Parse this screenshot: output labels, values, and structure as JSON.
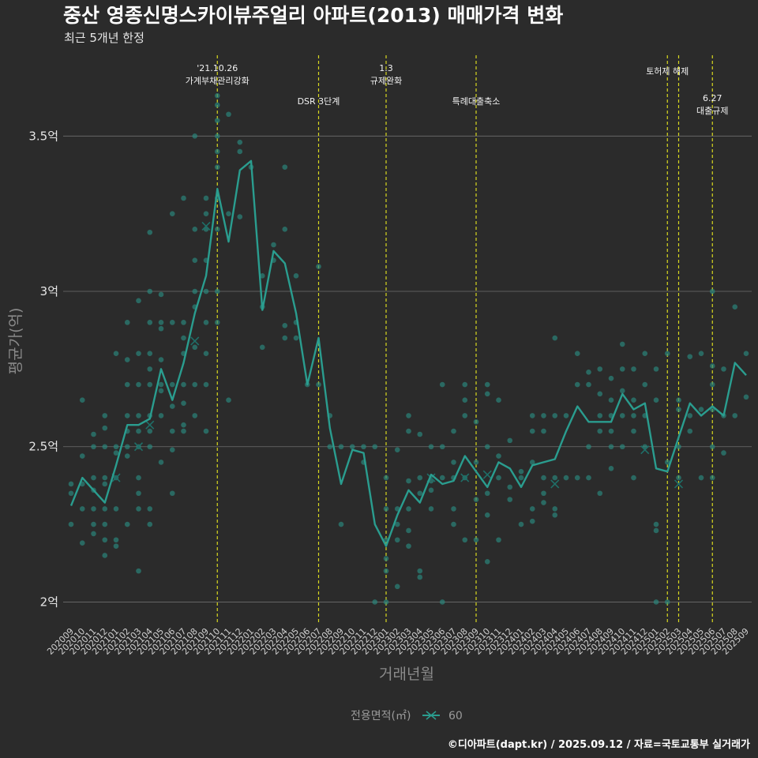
{
  "chart_data": {
    "type": "line",
    "title": "중산 영종신명스카이뷰주얼리 아파트(2013) 매매가격 변화",
    "subtitle": "최근 5개년 한정",
    "xlabel": "거래년월",
    "ylabel": "평균가(억)",
    "caption": "©디아파트(dapt.kr) / 2025.09.12 / 자료=국토교통부 실거래가",
    "legend": {
      "title": "전용면적(㎡)",
      "label": "60",
      "position": "bottom"
    },
    "colors": {
      "background": "#2b2b2b",
      "grid": "#6e6e6e",
      "series": "#2a9d8f",
      "points": "#2a8a80",
      "events": "#d8d81f"
    },
    "ylim": [
      1.93,
      3.76
    ],
    "yticks": [
      {
        "value": 2.0,
        "label": "2억"
      },
      {
        "value": 2.5,
        "label": "2.5억"
      },
      {
        "value": 3.0,
        "label": "3억"
      },
      {
        "value": 3.5,
        "label": "3.5억"
      }
    ],
    "categories": [
      "202009",
      "202010",
      "202011",
      "202012",
      "202101",
      "202102",
      "202103",
      "202104",
      "202105",
      "202106",
      "202107",
      "202108",
      "202109",
      "202110",
      "202111",
      "202112",
      "202201",
      "202202",
      "202203",
      "202204",
      "202205",
      "202206",
      "202207",
      "202208",
      "202209",
      "202210",
      "202211",
      "202212",
      "202301",
      "202302",
      "202303",
      "202304",
      "202305",
      "202306",
      "202307",
      "202308",
      "202309",
      "202310",
      "202311",
      "202312",
      "202401",
      "202402",
      "202403",
      "202404",
      "202405",
      "202406",
      "202407",
      "202408",
      "202409",
      "202410",
      "202411",
      "202412",
      "202501",
      "202502",
      "202503",
      "202504",
      "202505",
      "202506",
      "202507",
      "202508",
      "202509"
    ],
    "series": [
      {
        "name": "60",
        "values": [
          2.31,
          2.4,
          2.36,
          2.32,
          2.44,
          2.57,
          2.57,
          2.59,
          2.75,
          2.65,
          2.77,
          2.93,
          3.05,
          3.33,
          3.16,
          3.39,
          3.42,
          2.94,
          3.13,
          3.09,
          2.93,
          2.7,
          2.85,
          2.56,
          2.38,
          2.49,
          2.48,
          2.25,
          2.18,
          2.28,
          2.36,
          2.32,
          2.41,
          2.38,
          2.39,
          2.47,
          2.42,
          2.37,
          2.45,
          2.43,
          2.37,
          2.44,
          2.45,
          2.46,
          2.55,
          2.63,
          2.58,
          2.58,
          2.58,
          2.67,
          2.62,
          2.64,
          2.43,
          2.42,
          2.53,
          2.64,
          2.6,
          2.63,
          2.6,
          2.77,
          2.73
        ]
      }
    ],
    "scatter_points": [
      [
        0,
        2.25
      ],
      [
        0,
        2.35
      ],
      [
        0,
        2.38
      ],
      [
        1,
        2.19
      ],
      [
        1,
        2.3
      ],
      [
        1,
        2.38
      ],
      [
        1,
        2.47
      ],
      [
        1,
        2.65
      ],
      [
        2,
        2.22
      ],
      [
        2,
        2.25
      ],
      [
        2,
        2.3
      ],
      [
        2,
        2.36
      ],
      [
        2,
        2.4
      ],
      [
        2,
        2.5
      ],
      [
        2,
        2.54
      ],
      [
        3,
        2.15
      ],
      [
        3,
        2.2
      ],
      [
        3,
        2.25
      ],
      [
        3,
        2.3
      ],
      [
        3,
        2.38
      ],
      [
        3,
        2.4
      ],
      [
        3,
        2.5
      ],
      [
        3,
        2.56
      ],
      [
        3,
        2.6
      ],
      [
        4,
        2.18
      ],
      [
        4,
        2.2
      ],
      [
        4,
        2.3
      ],
      [
        4,
        2.4
      ],
      [
        4,
        2.48
      ],
      [
        4,
        2.5
      ],
      [
        4,
        2.8
      ],
      [
        5,
        2.25
      ],
      [
        5,
        2.47
      ],
      [
        5,
        2.5
      ],
      [
        5,
        2.55
      ],
      [
        5,
        2.6
      ],
      [
        5,
        2.7
      ],
      [
        5,
        2.78
      ],
      [
        5,
        2.9
      ],
      [
        6,
        2.1
      ],
      [
        6,
        2.3
      ],
      [
        6,
        2.35
      ],
      [
        6,
        2.4
      ],
      [
        6,
        2.5
      ],
      [
        6,
        2.55
      ],
      [
        6,
        2.6
      ],
      [
        6,
        2.7
      ],
      [
        6,
        2.8
      ],
      [
        6,
        2.97
      ],
      [
        7,
        2.25
      ],
      [
        7,
        2.3
      ],
      [
        7,
        2.5
      ],
      [
        7,
        2.55
      ],
      [
        7,
        2.6
      ],
      [
        7,
        2.7
      ],
      [
        7,
        2.75
      ],
      [
        7,
        2.8
      ],
      [
        7,
        2.9
      ],
      [
        7,
        3.0
      ],
      [
        7,
        3.19
      ],
      [
        8,
        2.45
      ],
      [
        8,
        2.6
      ],
      [
        8,
        2.68
      ],
      [
        8,
        2.7
      ],
      [
        8,
        2.78
      ],
      [
        8,
        2.88
      ],
      [
        8,
        2.9
      ],
      [
        8,
        2.99
      ],
      [
        9,
        2.35
      ],
      [
        9,
        2.49
      ],
      [
        9,
        2.55
      ],
      [
        9,
        2.63
      ],
      [
        9,
        2.7
      ],
      [
        9,
        2.9
      ],
      [
        9,
        3.25
      ],
      [
        10,
        2.55
      ],
      [
        10,
        2.57
      ],
      [
        10,
        2.64
      ],
      [
        10,
        2.7
      ],
      [
        10,
        2.8
      ],
      [
        10,
        2.85
      ],
      [
        10,
        2.9
      ],
      [
        10,
        3.3
      ],
      [
        11,
        2.6
      ],
      [
        11,
        2.7
      ],
      [
        11,
        2.82
      ],
      [
        11,
        2.95
      ],
      [
        11,
        3.0
      ],
      [
        11,
        3.1
      ],
      [
        11,
        3.2
      ],
      [
        11,
        3.5
      ],
      [
        12,
        2.55
      ],
      [
        12,
        2.7
      ],
      [
        12,
        2.8
      ],
      [
        12,
        2.9
      ],
      [
        12,
        3.0
      ],
      [
        12,
        3.1
      ],
      [
        12,
        3.2
      ],
      [
        12,
        3.25
      ],
      [
        12,
        3.3
      ],
      [
        13,
        2.9
      ],
      [
        13,
        3.0
      ],
      [
        13,
        3.2
      ],
      [
        13,
        3.3
      ],
      [
        13,
        3.4
      ],
      [
        13,
        3.45
      ],
      [
        13,
        3.5
      ],
      [
        13,
        3.55
      ],
      [
        13,
        3.6
      ],
      [
        13,
        3.63
      ],
      [
        14,
        2.65
      ],
      [
        14,
        3.25
      ],
      [
        14,
        3.57
      ],
      [
        15,
        3.24
      ],
      [
        15,
        3.45
      ],
      [
        15,
        3.48
      ],
      [
        16,
        3.4
      ],
      [
        17,
        2.82
      ],
      [
        17,
        2.95
      ],
      [
        17,
        3.05
      ],
      [
        18,
        3.1
      ],
      [
        18,
        3.15
      ],
      [
        19,
        2.85
      ],
      [
        19,
        2.89
      ],
      [
        19,
        3.2
      ],
      [
        19,
        3.4
      ],
      [
        20,
        2.85
      ],
      [
        20,
        2.9
      ],
      [
        20,
        3.05
      ],
      [
        21,
        2.7
      ],
      [
        22,
        2.7
      ],
      [
        22,
        3.08
      ],
      [
        23,
        2.5
      ],
      [
        23,
        2.6
      ],
      [
        24,
        2.25
      ],
      [
        24,
        2.5
      ],
      [
        25,
        2.5
      ],
      [
        26,
        2.45
      ],
      [
        26,
        2.5
      ],
      [
        27,
        2.0
      ],
      [
        27,
        2.5
      ],
      [
        28,
        2.0
      ],
      [
        28,
        2.1
      ],
      [
        28,
        2.14
      ],
      [
        28,
        2.2
      ],
      [
        28,
        2.3
      ],
      [
        28,
        2.4
      ],
      [
        29,
        2.05
      ],
      [
        29,
        2.2
      ],
      [
        29,
        2.25
      ],
      [
        29,
        2.3
      ],
      [
        29,
        2.49
      ],
      [
        30,
        2.18
      ],
      [
        30,
        2.23
      ],
      [
        30,
        2.3
      ],
      [
        30,
        2.39
      ],
      [
        30,
        2.55
      ],
      [
        30,
        2.6
      ],
      [
        31,
        2.08
      ],
      [
        31,
        2.1
      ],
      [
        31,
        2.35
      ],
      [
        31,
        2.4
      ],
      [
        31,
        2.54
      ],
      [
        32,
        2.3
      ],
      [
        32,
        2.36
      ],
      [
        32,
        2.39
      ],
      [
        32,
        2.5
      ],
      [
        33,
        2.0
      ],
      [
        33,
        2.4
      ],
      [
        33,
        2.5
      ],
      [
        33,
        2.7
      ],
      [
        34,
        2.25
      ],
      [
        34,
        2.3
      ],
      [
        34,
        2.4
      ],
      [
        34,
        2.45
      ],
      [
        34,
        2.55
      ],
      [
        35,
        2.2
      ],
      [
        35,
        2.4
      ],
      [
        35,
        2.6
      ],
      [
        35,
        2.65
      ],
      [
        35,
        2.7
      ],
      [
        36,
        2.2
      ],
      [
        36,
        2.33
      ],
      [
        36,
        2.45
      ],
      [
        36,
        2.58
      ],
      [
        37,
        2.13
      ],
      [
        37,
        2.28
      ],
      [
        37,
        2.35
      ],
      [
        37,
        2.5
      ],
      [
        37,
        2.67
      ],
      [
        37,
        2.7
      ],
      [
        38,
        2.2
      ],
      [
        38,
        2.4
      ],
      [
        38,
        2.47
      ],
      [
        38,
        2.65
      ],
      [
        39,
        2.33
      ],
      [
        39,
        2.37
      ],
      [
        39,
        2.52
      ],
      [
        40,
        2.25
      ],
      [
        40,
        2.4
      ],
      [
        40,
        2.42
      ],
      [
        41,
        2.26
      ],
      [
        41,
        2.3
      ],
      [
        41,
        2.45
      ],
      [
        41,
        2.55
      ],
      [
        41,
        2.6
      ],
      [
        42,
        2.32
      ],
      [
        42,
        2.35
      ],
      [
        42,
        2.4
      ],
      [
        42,
        2.55
      ],
      [
        42,
        2.6
      ],
      [
        43,
        2.28
      ],
      [
        43,
        2.3
      ],
      [
        43,
        2.4
      ],
      [
        43,
        2.6
      ],
      [
        43,
        2.85
      ],
      [
        44,
        2.4
      ],
      [
        44,
        2.6
      ],
      [
        45,
        2.4
      ],
      [
        45,
        2.7
      ],
      [
        45,
        2.8
      ],
      [
        46,
        2.4
      ],
      [
        46,
        2.5
      ],
      [
        46,
        2.7
      ],
      [
        46,
        2.74
      ],
      [
        47,
        2.35
      ],
      [
        47,
        2.55
      ],
      [
        47,
        2.6
      ],
      [
        47,
        2.67
      ],
      [
        47,
        2.75
      ],
      [
        48,
        2.43
      ],
      [
        48,
        2.5
      ],
      [
        48,
        2.55
      ],
      [
        48,
        2.6
      ],
      [
        48,
        2.65
      ],
      [
        48,
        2.72
      ],
      [
        49,
        2.5
      ],
      [
        49,
        2.6
      ],
      [
        49,
        2.68
      ],
      [
        49,
        2.75
      ],
      [
        49,
        2.83
      ],
      [
        50,
        2.4
      ],
      [
        50,
        2.55
      ],
      [
        50,
        2.6
      ],
      [
        50,
        2.65
      ],
      [
        50,
        2.75
      ],
      [
        51,
        2.5
      ],
      [
        51,
        2.6
      ],
      [
        51,
        2.7
      ],
      [
        51,
        2.8
      ],
      [
        52,
        2.0
      ],
      [
        52,
        2.23
      ],
      [
        52,
        2.25
      ],
      [
        52,
        2.65
      ],
      [
        52,
        2.75
      ],
      [
        53,
        2.0
      ],
      [
        53,
        2.45
      ],
      [
        53,
        2.8
      ],
      [
        54,
        2.4
      ],
      [
        54,
        2.5
      ],
      [
        54,
        2.62
      ],
      [
        54,
        2.65
      ],
      [
        55,
        2.55
      ],
      [
        55,
        2.6
      ],
      [
        55,
        2.79
      ],
      [
        56,
        2.4
      ],
      [
        56,
        2.62
      ],
      [
        56,
        2.8
      ],
      [
        57,
        2.4
      ],
      [
        57,
        2.5
      ],
      [
        57,
        2.62
      ],
      [
        57,
        2.7
      ],
      [
        57,
        2.76
      ],
      [
        57,
        3.0
      ],
      [
        58,
        2.48
      ],
      [
        58,
        2.6
      ],
      [
        58,
        2.75
      ],
      [
        59,
        2.6
      ],
      [
        59,
        2.95
      ],
      [
        60,
        2.66
      ],
      [
        60,
        2.8
      ]
    ],
    "x_markers": [
      [
        4,
        2.4
      ],
      [
        6,
        2.5
      ],
      [
        7,
        2.57
      ],
      [
        11,
        2.84
      ],
      [
        12,
        3.21
      ],
      [
        32,
        2.4
      ],
      [
        35,
        2.4
      ],
      [
        37,
        2.41
      ],
      [
        43,
        2.38
      ],
      [
        51,
        2.49
      ],
      [
        54,
        2.38
      ]
    ],
    "events": [
      {
        "index": 13.0,
        "lines": [
          "'21.10.26",
          "가계부채관리강화"
        ],
        "row": 0
      },
      {
        "index": 22.0,
        "lines": [
          "DSR 3단계"
        ],
        "row": 1
      },
      {
        "index": 28.0,
        "lines": [
          "1.3",
          "규제완화"
        ],
        "row": 0
      },
      {
        "index": 36.0,
        "lines": [
          "특례대출축소"
        ],
        "row": 1
      },
      {
        "index": 53.0,
        "lines": [
          "토허제 해제"
        ],
        "row": 0
      },
      {
        "index": 54.0,
        "lines": [],
        "row": 0
      },
      {
        "index": 57.0,
        "lines": [
          "6.27",
          "대출규제"
        ],
        "row": 1
      }
    ]
  }
}
